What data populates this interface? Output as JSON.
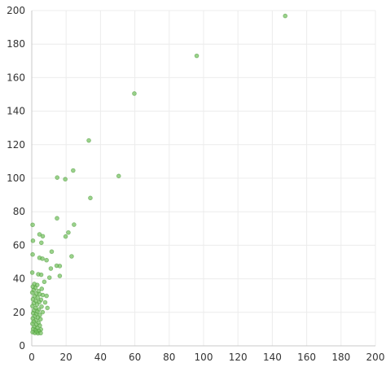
{
  "chart_data": {
    "type": "scatter",
    "title": "",
    "xlabel": "",
    "ylabel": "",
    "xlim": [
      0,
      200
    ],
    "ylim": [
      0,
      200
    ],
    "x_ticks": [
      0,
      20,
      40,
      60,
      80,
      100,
      120,
      140,
      160,
      180,
      200
    ],
    "y_ticks": [
      0,
      20,
      40,
      60,
      80,
      100,
      120,
      140,
      160,
      180,
      200
    ],
    "grid": true,
    "point_color": "#6fbf5a",
    "series": [
      {
        "points": [
          [
            147.5,
            196.8
          ],
          [
            96,
            173
          ],
          [
            59.7,
            150.5
          ],
          [
            33.2,
            122.5
          ],
          [
            50.6,
            101.3
          ],
          [
            24.1,
            104.6
          ],
          [
            14.8,
            100.4
          ],
          [
            19.5,
            99.4
          ],
          [
            34.1,
            88.2
          ],
          [
            14.7,
            76.1
          ],
          [
            24.6,
            72.3
          ],
          [
            21.3,
            67.6
          ],
          [
            19.7,
            65.2
          ],
          [
            0.5,
            72.2
          ],
          [
            4.5,
            66.5
          ],
          [
            6.4,
            65.4
          ],
          [
            0.7,
            62.7
          ],
          [
            5.6,
            61.5
          ],
          [
            11.6,
            56.2
          ],
          [
            23.2,
            53.4
          ],
          [
            0.5,
            54.5
          ],
          [
            4.5,
            52.5
          ],
          [
            6.2,
            52
          ],
          [
            8.6,
            51.1
          ],
          [
            14.5,
            47.8
          ],
          [
            16.3,
            47.6
          ],
          [
            11.1,
            46.1
          ],
          [
            0.3,
            43.7
          ],
          [
            3.8,
            42.7
          ],
          [
            5.5,
            42.4
          ],
          [
            16.3,
            41.7
          ],
          [
            10.3,
            40.7
          ],
          [
            7.3,
            38.2
          ],
          [
            1.5,
            36.9
          ],
          [
            3.2,
            36.3
          ],
          [
            0.6,
            35.3
          ],
          [
            2.1,
            34.6
          ],
          [
            5.8,
            34
          ],
          [
            1.1,
            33.2
          ],
          [
            3.9,
            32.7
          ],
          [
            0.3,
            31.8
          ],
          [
            2.7,
            31.1
          ],
          [
            4.6,
            30.8
          ],
          [
            6.4,
            30.3
          ],
          [
            1.6,
            29.6
          ],
          [
            8.6,
            29.8
          ],
          [
            3.4,
            28.7
          ],
          [
            0.7,
            27.8
          ],
          [
            5.4,
            27.5
          ],
          [
            2.4,
            26.8
          ],
          [
            4.4,
            26.1
          ],
          [
            1.2,
            25.4
          ],
          [
            7.8,
            25.9
          ],
          [
            3.1,
            24.6
          ],
          [
            0.4,
            23.7
          ],
          [
            5.7,
            23.4
          ],
          [
            2.2,
            22.5
          ],
          [
            4.1,
            21.7
          ],
          [
            9.1,
            22.6
          ],
          [
            1.3,
            21.1
          ],
          [
            3.3,
            20.4
          ],
          [
            6.3,
            20.1
          ],
          [
            0.8,
            19.5
          ],
          [
            2.6,
            18.9
          ],
          [
            4.7,
            18.4
          ],
          [
            1.6,
            17.7
          ],
          [
            3.6,
            16.9
          ],
          [
            0.6,
            16.4
          ],
          [
            5.1,
            15.9
          ],
          [
            2.4,
            15.2
          ],
          [
            1.1,
            14.5
          ],
          [
            3.9,
            13.8
          ],
          [
            0.4,
            13.2
          ],
          [
            2.7,
            12.6
          ],
          [
            4.7,
            12.1
          ],
          [
            1.5,
            11.4
          ],
          [
            3.2,
            10.7
          ],
          [
            0.8,
            10.1
          ],
          [
            5.3,
            9.8
          ],
          [
            2.3,
            9.3
          ],
          [
            4.1,
            8.9
          ],
          [
            0.5,
            8.2
          ],
          [
            1.8,
            7.7
          ],
          [
            3.6,
            7.5
          ],
          [
            5.2,
            7.6
          ],
          [
            2.8,
            8.4
          ]
        ]
      }
    ]
  }
}
